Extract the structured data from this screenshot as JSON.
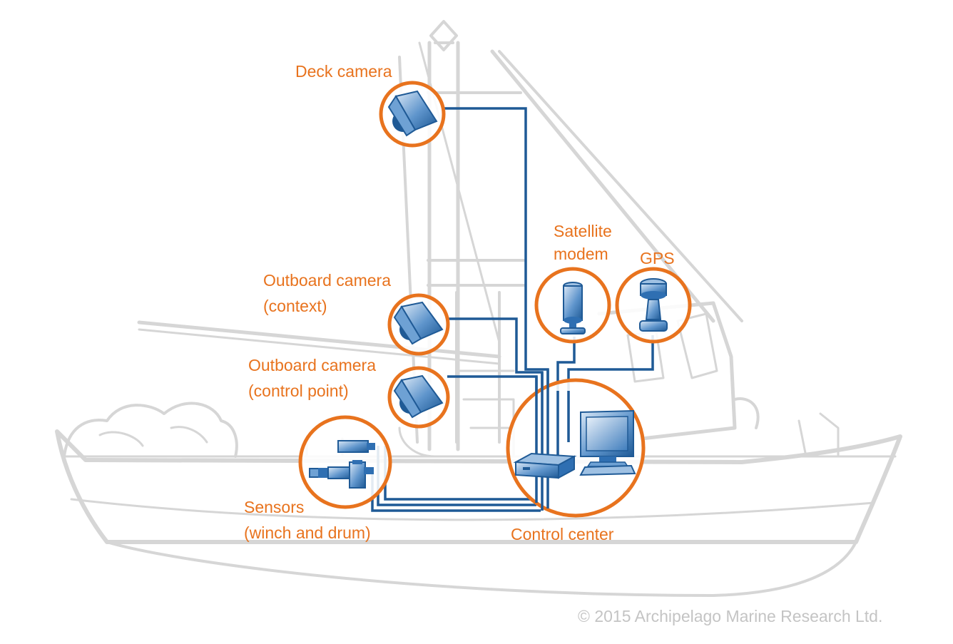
{
  "labels": {
    "deck_camera": "Deck camera",
    "satellite_modem_line1": "Satellite",
    "satellite_modem_line2": "modem",
    "gps": "GPS",
    "outboard_context_line1": "Outboard camera",
    "outboard_context_line2": "(context)",
    "outboard_control_line1": "Outboard camera",
    "outboard_control_line2": "(control point)",
    "sensors_line1": "Sensors",
    "sensors_line2": "(winch and drum)",
    "control_center": "Control center"
  },
  "copyright": "© 2015 Archipelago Marine Research Ltd.",
  "colors": {
    "accent_orange": "#e8731e",
    "cable_blue": "#1f5a96",
    "device_blue": "#2f6fb2",
    "vessel_gray": "#d6d6d6",
    "copyright_gray": "#c4c4c4"
  }
}
